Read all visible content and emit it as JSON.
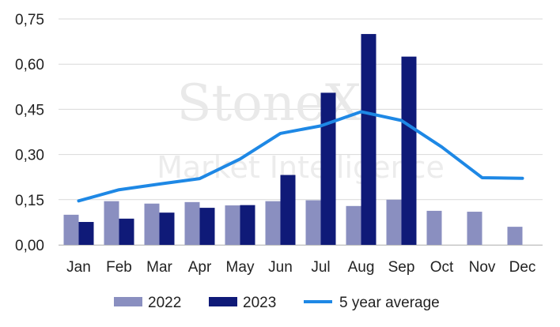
{
  "watermark": {
    "line1": "StoneX",
    "line2": "Market Intelligence"
  },
  "chart_data": {
    "type": "bar",
    "categories": [
      "Jan",
      "Feb",
      "Mar",
      "Apr",
      "May",
      "Jun",
      "Jul",
      "Aug",
      "Sep",
      "Oct",
      "Nov",
      "Dec"
    ],
    "series": [
      {
        "name": "2022",
        "kind": "bar",
        "color": "#8a8fc0",
        "values": [
          0.1,
          0.145,
          0.137,
          0.142,
          0.131,
          0.145,
          0.148,
          0.129,
          0.15,
          0.113,
          0.11,
          0.06
        ]
      },
      {
        "name": "2023",
        "kind": "bar",
        "color": "#0f1a78",
        "values": [
          0.076,
          0.087,
          0.107,
          0.123,
          0.132,
          0.232,
          0.505,
          0.7,
          0.625,
          null,
          null,
          null
        ]
      },
      {
        "name": "5 year average",
        "kind": "line",
        "color": "#1e88e5",
        "values": [
          0.146,
          0.183,
          0.202,
          0.22,
          0.285,
          0.37,
          0.395,
          0.442,
          0.413,
          0.325,
          0.223,
          0.221
        ]
      }
    ],
    "yticks": [
      "0,00",
      "0,15",
      "0,30",
      "0,45",
      "0,60",
      "0,75"
    ],
    "ylim": [
      0,
      0.75
    ],
    "grid": "horizontal",
    "legend": "bottom"
  }
}
